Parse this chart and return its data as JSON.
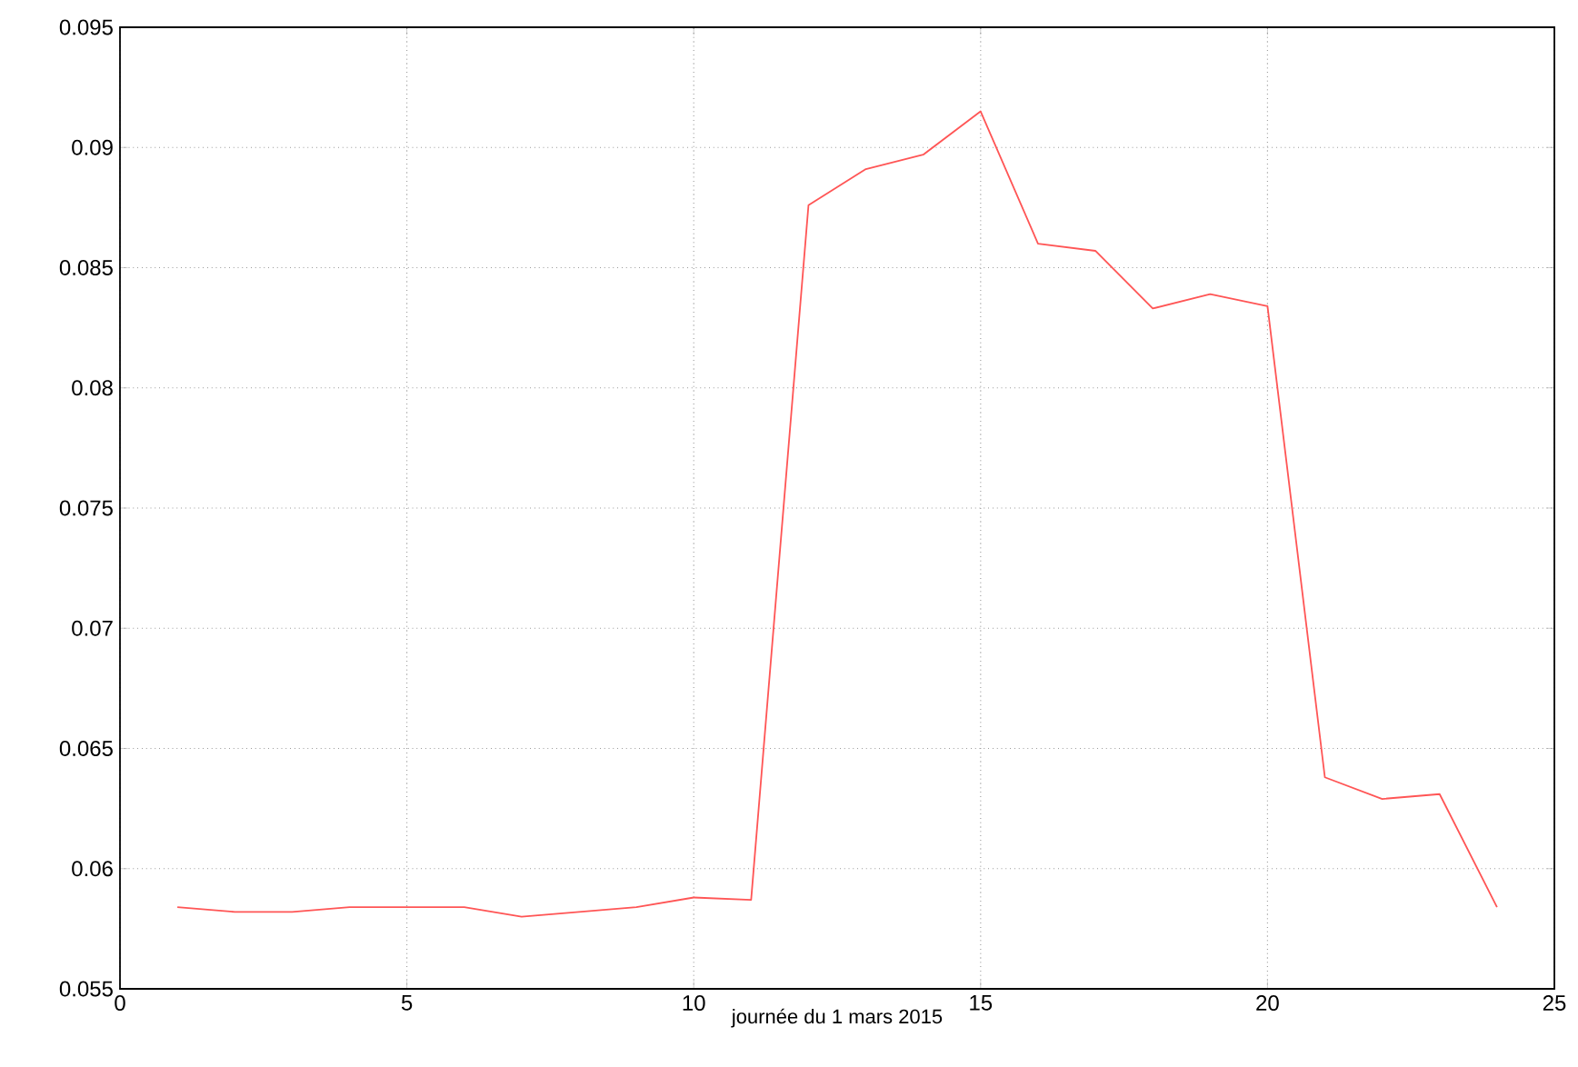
{
  "chart_data": {
    "type": "line",
    "xlabel": "journée du 1 mars 2015",
    "x": [
      1,
      2,
      3,
      4,
      5,
      6,
      7,
      8,
      9,
      10,
      11,
      12,
      13,
      14,
      15,
      16,
      17,
      18,
      19,
      20,
      21,
      22,
      23,
      24
    ],
    "series": [
      {
        "color": "#ff5555",
        "values": [
          0.0584,
          0.0582,
          0.0582,
          0.0584,
          0.0584,
          0.0584,
          0.058,
          0.0582,
          0.0584,
          0.0588,
          0.0587,
          0.0876,
          0.0891,
          0.0897,
          0.0915,
          0.086,
          0.0857,
          0.0833,
          0.0839,
          0.0834,
          0.0638,
          0.0629,
          0.0631,
          0.0584
        ]
      }
    ],
    "xlim": [
      0,
      25
    ],
    "ylim": [
      0.055,
      0.095
    ],
    "xticks": [
      0,
      5,
      10,
      15,
      20,
      25
    ],
    "yticks": [
      0.055,
      0.06,
      0.065,
      0.07,
      0.075,
      0.08,
      0.085,
      0.09,
      0.095
    ],
    "grid": true,
    "marker": "none",
    "line_style": "solid"
  }
}
